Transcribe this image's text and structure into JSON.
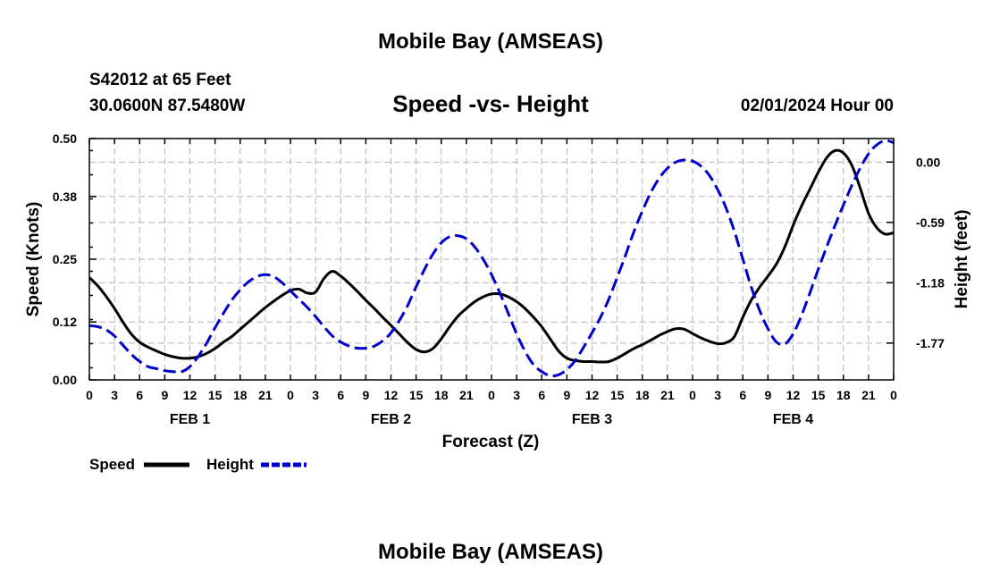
{
  "header": {
    "title": "Mobile Bay (AMSEAS)",
    "station": "S42012 at 65 Feet",
    "coords": "30.0600N  87.5480W",
    "subtitle": "Speed -vs- Height",
    "datetime": "02/01/2024 Hour 00"
  },
  "footer": {
    "title": "Mobile Bay (AMSEAS)"
  },
  "colors": {
    "speed": "#000000",
    "height": "#0000cc"
  },
  "chart_data": {
    "type": "line",
    "title": "Speed -vs- Height",
    "xlabel": "Forecast (Z)",
    "ylabel": "Speed (Knots)",
    "ylabel_right": "Height (feet)",
    "x_unit": "hours from 02/01/2024 Hour 00",
    "xlim": [
      0,
      96
    ],
    "ylim": [
      0.0,
      0.5
    ],
    "y2lim": [
      -2.13,
      0.23
    ],
    "grid": true,
    "legend_placement": "bottom-left",
    "x_tick_labels": [
      "0",
      "3",
      "6",
      "9",
      "12",
      "15",
      "18",
      "21",
      "0",
      "3",
      "6",
      "9",
      "12",
      "15",
      "18",
      "21",
      "0",
      "3",
      "6",
      "9",
      "12",
      "15",
      "18",
      "21",
      "0",
      "3",
      "6",
      "9",
      "12",
      "15",
      "18",
      "21",
      "0"
    ],
    "day_labels": [
      {
        "label": "FEB 1",
        "x": 12
      },
      {
        "label": "FEB 2",
        "x": 36
      },
      {
        "label": "FEB 3",
        "x": 60
      },
      {
        "label": "FEB 4",
        "x": 84
      }
    ],
    "y_ticks": [
      "0.00",
      "0.12",
      "0.25",
      "0.38",
      "0.50"
    ],
    "y2_ticks": [
      "0.00",
      "-0.59",
      "-1.18",
      "-1.77"
    ],
    "series": [
      {
        "name": "Speed",
        "axis": "left",
        "style": "solid",
        "x": [
          0,
          1,
          2,
          3,
          4,
          5,
          6,
          7,
          8,
          9,
          10,
          11,
          12,
          13,
          14,
          15,
          16,
          17,
          18,
          19,
          20,
          21,
          22,
          23,
          24,
          25,
          26,
          27,
          28,
          29,
          30,
          31,
          32,
          33,
          34,
          35,
          36,
          37,
          38,
          39,
          40,
          41,
          42,
          43,
          44,
          45,
          46,
          47,
          48,
          49,
          50,
          51,
          52,
          53,
          54,
          55,
          56,
          57,
          58,
          59,
          60,
          61,
          62,
          63,
          64,
          65,
          66,
          67,
          68,
          69,
          70,
          71,
          72,
          73,
          74,
          75,
          76,
          77,
          78,
          79,
          80,
          81,
          82,
          83,
          84,
          85,
          86,
          87,
          88,
          89,
          90,
          91,
          92,
          93,
          94,
          95,
          96
        ],
        "values": [
          0.212,
          0.195,
          0.173,
          0.148,
          0.12,
          0.095,
          0.078,
          0.068,
          0.06,
          0.053,
          0.048,
          0.045,
          0.045,
          0.048,
          0.055,
          0.065,
          0.078,
          0.09,
          0.105,
          0.12,
          0.135,
          0.15,
          0.163,
          0.175,
          0.185,
          0.188,
          0.18,
          0.182,
          0.21,
          0.225,
          0.215,
          0.2,
          0.183,
          0.165,
          0.148,
          0.13,
          0.113,
          0.095,
          0.077,
          0.063,
          0.058,
          0.065,
          0.085,
          0.11,
          0.132,
          0.148,
          0.162,
          0.172,
          0.178,
          0.178,
          0.172,
          0.162,
          0.148,
          0.13,
          0.11,
          0.085,
          0.06,
          0.045,
          0.04,
          0.038,
          0.038,
          0.037,
          0.038,
          0.045,
          0.055,
          0.065,
          0.073,
          0.082,
          0.092,
          0.1,
          0.106,
          0.105,
          0.096,
          0.087,
          0.08,
          0.075,
          0.077,
          0.09,
          0.13,
          0.165,
          0.192,
          0.215,
          0.24,
          0.275,
          0.32,
          0.36,
          0.395,
          0.43,
          0.46,
          0.475,
          0.47,
          0.445,
          0.398,
          0.345,
          0.315,
          0.302,
          0.305
        ]
      },
      {
        "name": "Height",
        "axis": "right",
        "style": "dashed",
        "x": [
          0,
          1,
          2,
          3,
          4,
          5,
          6,
          7,
          8,
          9,
          10,
          11,
          12,
          13,
          14,
          15,
          16,
          17,
          18,
          19,
          20,
          21,
          22,
          23,
          24,
          25,
          26,
          27,
          28,
          29,
          30,
          31,
          32,
          33,
          34,
          35,
          36,
          37,
          38,
          39,
          40,
          41,
          42,
          43,
          44,
          45,
          46,
          47,
          48,
          49,
          50,
          51,
          52,
          53,
          54,
          55,
          56,
          57,
          58,
          59,
          60,
          61,
          62,
          63,
          64,
          65,
          66,
          67,
          68,
          69,
          70,
          71,
          72,
          73,
          74,
          75,
          76,
          77,
          78,
          79,
          80,
          81,
          82,
          83,
          84,
          85,
          86,
          87,
          88,
          89,
          90,
          91,
          92,
          93,
          94,
          95,
          96
        ],
        "values": [
          -1.6,
          -1.61,
          -1.64,
          -1.7,
          -1.79,
          -1.88,
          -1.95,
          -2.0,
          -2.02,
          -2.04,
          -2.05,
          -2.05,
          -2.0,
          -1.9,
          -1.77,
          -1.62,
          -1.48,
          -1.35,
          -1.25,
          -1.17,
          -1.12,
          -1.1,
          -1.12,
          -1.18,
          -1.26,
          -1.34,
          -1.42,
          -1.51,
          -1.61,
          -1.7,
          -1.76,
          -1.8,
          -1.82,
          -1.82,
          -1.8,
          -1.75,
          -1.67,
          -1.55,
          -1.4,
          -1.22,
          -1.05,
          -0.9,
          -0.79,
          -0.73,
          -0.72,
          -0.75,
          -0.83,
          -0.95,
          -1.1,
          -1.28,
          -1.48,
          -1.68,
          -1.85,
          -1.98,
          -2.05,
          -2.09,
          -2.08,
          -2.03,
          -1.94,
          -1.81,
          -1.67,
          -1.52,
          -1.34,
          -1.13,
          -0.91,
          -0.68,
          -0.48,
          -0.3,
          -0.16,
          -0.06,
          0.0,
          0.02,
          0.01,
          -0.04,
          -0.13,
          -0.27,
          -0.45,
          -0.68,
          -0.95,
          -1.22,
          -1.45,
          -1.63,
          -1.76,
          -1.78,
          -1.68,
          -1.5,
          -1.28,
          -1.05,
          -0.83,
          -0.62,
          -0.42,
          -0.23,
          -0.06,
          0.08,
          0.17,
          0.21,
          0.19
        ]
      }
    ]
  },
  "legend": {
    "speed_label": "Speed",
    "height_label": "Height"
  }
}
